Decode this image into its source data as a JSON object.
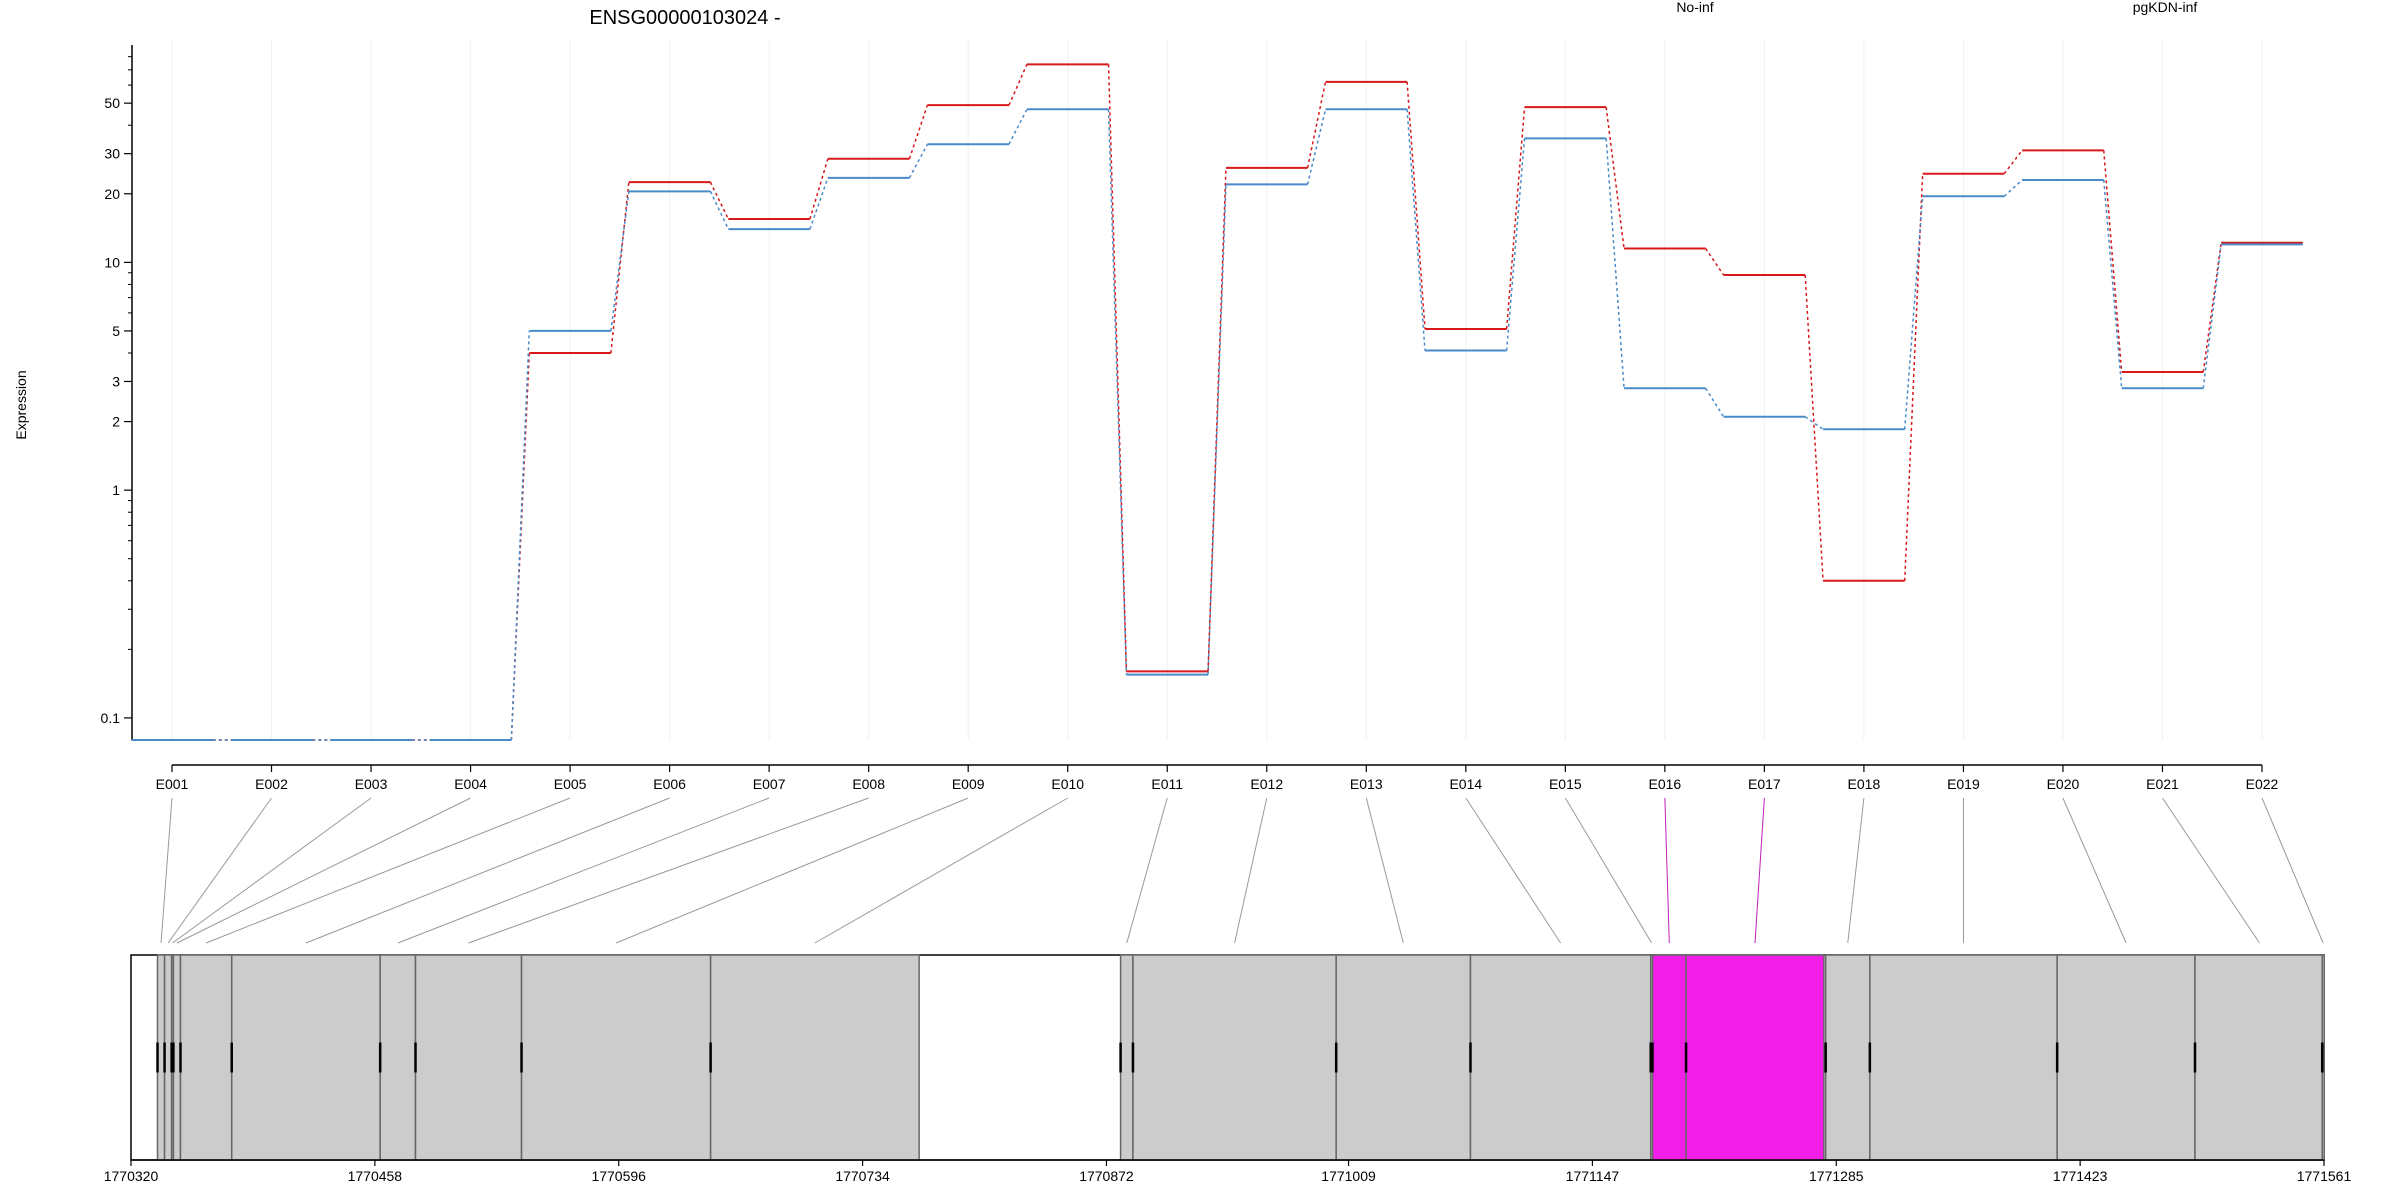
{
  "chart_data": {
    "type": "line",
    "title": "ENSG00000103024 -",
    "ylabel": "Expression",
    "xlabel": "",
    "y_scale": "log",
    "ylim": [
      0.08,
      90
    ],
    "yticks": [
      0.1,
      1,
      2,
      3,
      5,
      10,
      20,
      30,
      50
    ],
    "ytick_labels": [
      "0.1",
      "1",
      "2",
      "3",
      "5",
      "10",
      "20",
      "30",
      "50"
    ],
    "grid": "vertical-light",
    "legend_placement": "top",
    "categories": [
      "E001",
      "E002",
      "E003",
      "E004",
      "E005",
      "E006",
      "E007",
      "E008",
      "E009",
      "E010",
      "E011",
      "E012",
      "E013",
      "E014",
      "E015",
      "E016",
      "E017",
      "E018",
      "E019",
      "E020",
      "E021",
      "E022"
    ],
    "series": [
      {
        "name": "No-inf",
        "color": "#d7191c",
        "values": [
          0.08,
          0.08,
          0.08,
          0.08,
          4.0,
          22.5,
          15.5,
          28.5,
          49,
          74,
          0.16,
          26,
          62,
          5.1,
          48,
          11.5,
          8.8,
          0.4,
          24.5,
          31,
          3.3,
          12.2
        ]
      },
      {
        "name": "pgKDN-inf",
        "color": "#4a8ac9",
        "values": [
          0.08,
          0.08,
          0.08,
          0.08,
          5.0,
          20.5,
          14,
          23.5,
          33,
          47,
          0.155,
          22,
          47,
          4.1,
          35,
          2.8,
          2.1,
          1.85,
          19.5,
          23,
          2.8,
          12.0
        ]
      }
    ],
    "gene_model": {
      "x_start": 1770320,
      "x_end": 1771561,
      "axis_ticks": [
        1770320,
        1770458,
        1770596,
        1770734,
        1770872,
        1771009,
        1771147,
        1771285,
        1771423,
        1771561
      ],
      "highlight_color": "#f01ee6",
      "block_color": "#cccccc",
      "exon_blocks": [
        {
          "id": "E001",
          "start": 1770335,
          "end": 1770339,
          "highlight": false
        },
        {
          "id": "E002",
          "start": 1770339,
          "end": 1770343,
          "highlight": false
        },
        {
          "id": "E003",
          "start": 1770343,
          "end": 1770344,
          "highlight": false
        },
        {
          "id": "E004",
          "start": 1770344,
          "end": 1770348,
          "highlight": false
        },
        {
          "id": "E005",
          "start": 1770348,
          "end": 1770377,
          "highlight": false
        },
        {
          "id": "E006",
          "start": 1770377,
          "end": 1770461,
          "highlight": false
        },
        {
          "id": "E007",
          "start": 1770461,
          "end": 1770481,
          "highlight": false
        },
        {
          "id": "E008",
          "start": 1770481,
          "end": 1770541,
          "highlight": false
        },
        {
          "id": "E009",
          "start": 1770541,
          "end": 1770648,
          "highlight": false
        },
        {
          "id": "E010",
          "start": 1770648,
          "end": 1770766,
          "highlight": false
        },
        {
          "id": "E011",
          "start": 1770880,
          "end": 1770887,
          "highlight": false
        },
        {
          "id": "E012",
          "start": 1770887,
          "end": 1771002,
          "highlight": false
        },
        {
          "id": "E013",
          "start": 1771002,
          "end": 1771078,
          "highlight": false
        },
        {
          "id": "E014",
          "start": 1771078,
          "end": 1771180,
          "highlight": false
        },
        {
          "id": "E015",
          "start": 1771180,
          "end": 1771181,
          "highlight": false
        },
        {
          "id": "E016",
          "start": 1771181,
          "end": 1771200,
          "highlight": true
        },
        {
          "id": "E017",
          "start": 1771200,
          "end": 1771278,
          "highlight": true
        },
        {
          "id": "E018",
          "start": 1771279,
          "end": 1771304,
          "highlight": false
        },
        {
          "id": "E019",
          "start": 1771304,
          "end": 1771410,
          "highlight": false
        },
        {
          "id": "E020",
          "start": 1771410,
          "end": 1771488,
          "highlight": false
        },
        {
          "id": "E021",
          "start": 1771488,
          "end": 1771561,
          "highlight": false
        },
        {
          "id": "E022",
          "start": 1771560,
          "end": 1771561,
          "highlight": false
        }
      ]
    }
  }
}
